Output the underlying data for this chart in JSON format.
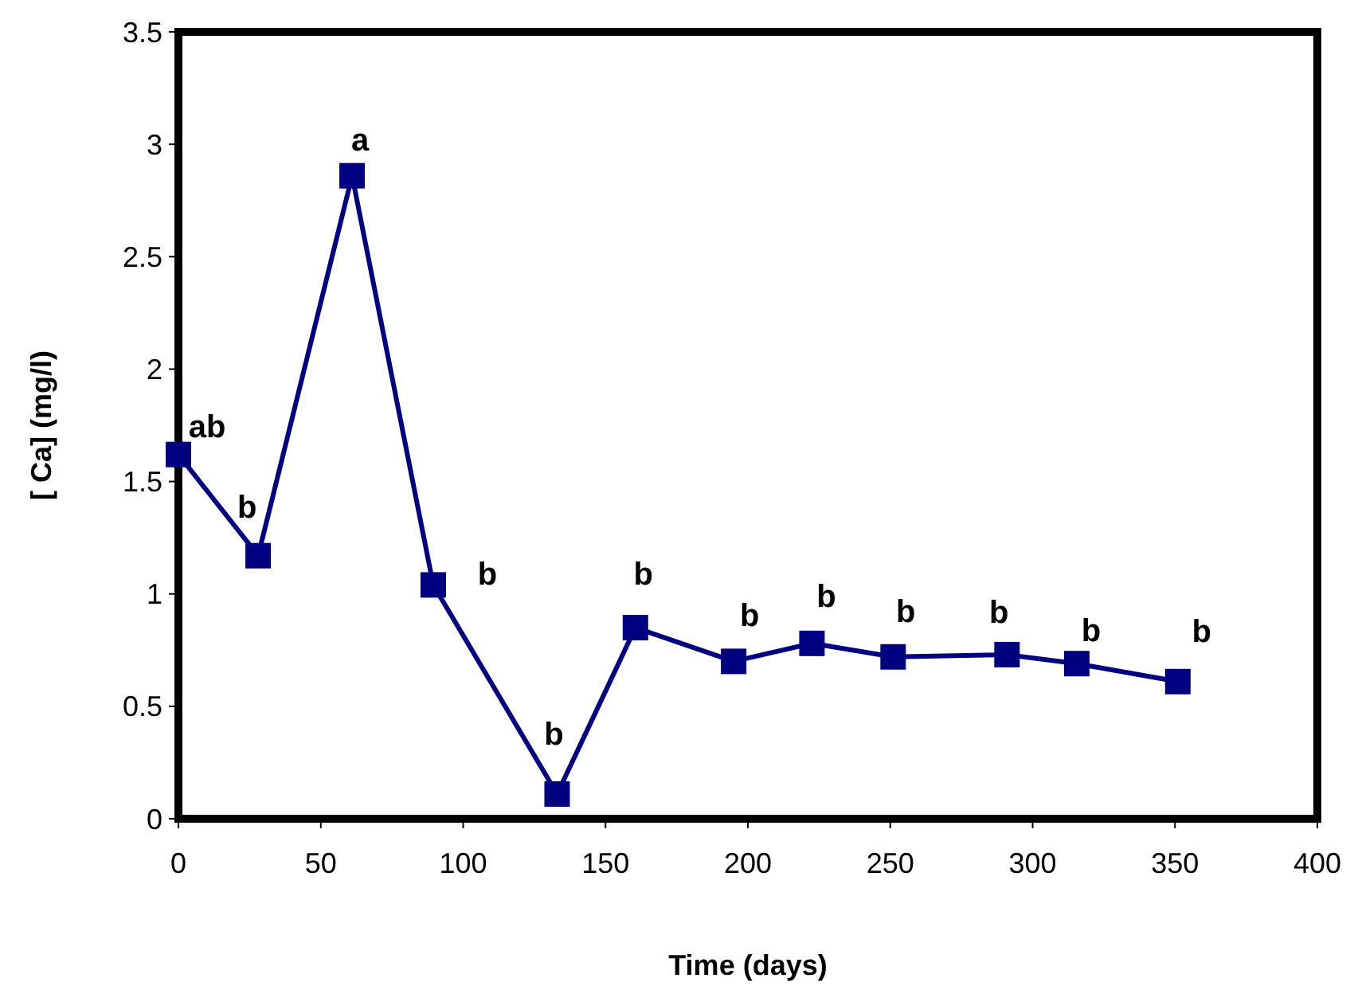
{
  "chart_data": {
    "type": "line",
    "xlabel": "Time (days)",
    "ylabel": "[ Ca] (mg/l)",
    "x": [
      0,
      28,
      61,
      89.5,
      133,
      160.5,
      195,
      222.5,
      251,
      291,
      315.5,
      351
    ],
    "series": [
      {
        "color": "#000080",
        "values": [
          1.62,
          1.17,
          2.86,
          1.04,
          0.11,
          0.85,
          0.7,
          0.78,
          0.72,
          0.73,
          0.69,
          0.61
        ]
      }
    ],
    "xlim": [
      0,
      400
    ],
    "xticks": [
      0,
      50,
      100,
      150,
      200,
      250,
      300,
      350,
      400
    ],
    "ylim": [
      0,
      3.5
    ],
    "yticks": [
      0,
      0.5,
      1,
      1.5,
      2,
      2.5,
      3,
      3.5
    ],
    "marker": "square",
    "line_style": "solid",
    "grid": false,
    "annotations": [
      {
        "text": "ab",
        "x": 0,
        "y": 1.62
      },
      {
        "text": "b",
        "x": 28,
        "y": 1.17
      },
      {
        "text": "a",
        "x": 61,
        "y": 2.86
      },
      {
        "text": "b",
        "x": 89.5,
        "y": 1.04
      },
      {
        "text": "b",
        "x": 133,
        "y": 0.11
      },
      {
        "text": "b",
        "x": 160.5,
        "y": 0.85
      },
      {
        "text": "b",
        "x": 195,
        "y": 0.7
      },
      {
        "text": "b",
        "x": 222.5,
        "y": 0.78
      },
      {
        "text": "b",
        "x": 251,
        "y": 0.72
      },
      {
        "text": "b",
        "x": 291,
        "y": 0.73
      },
      {
        "text": "b",
        "x": 315.5,
        "y": 0.69
      },
      {
        "text": "b",
        "x": 351,
        "y": 0.61
      }
    ]
  }
}
